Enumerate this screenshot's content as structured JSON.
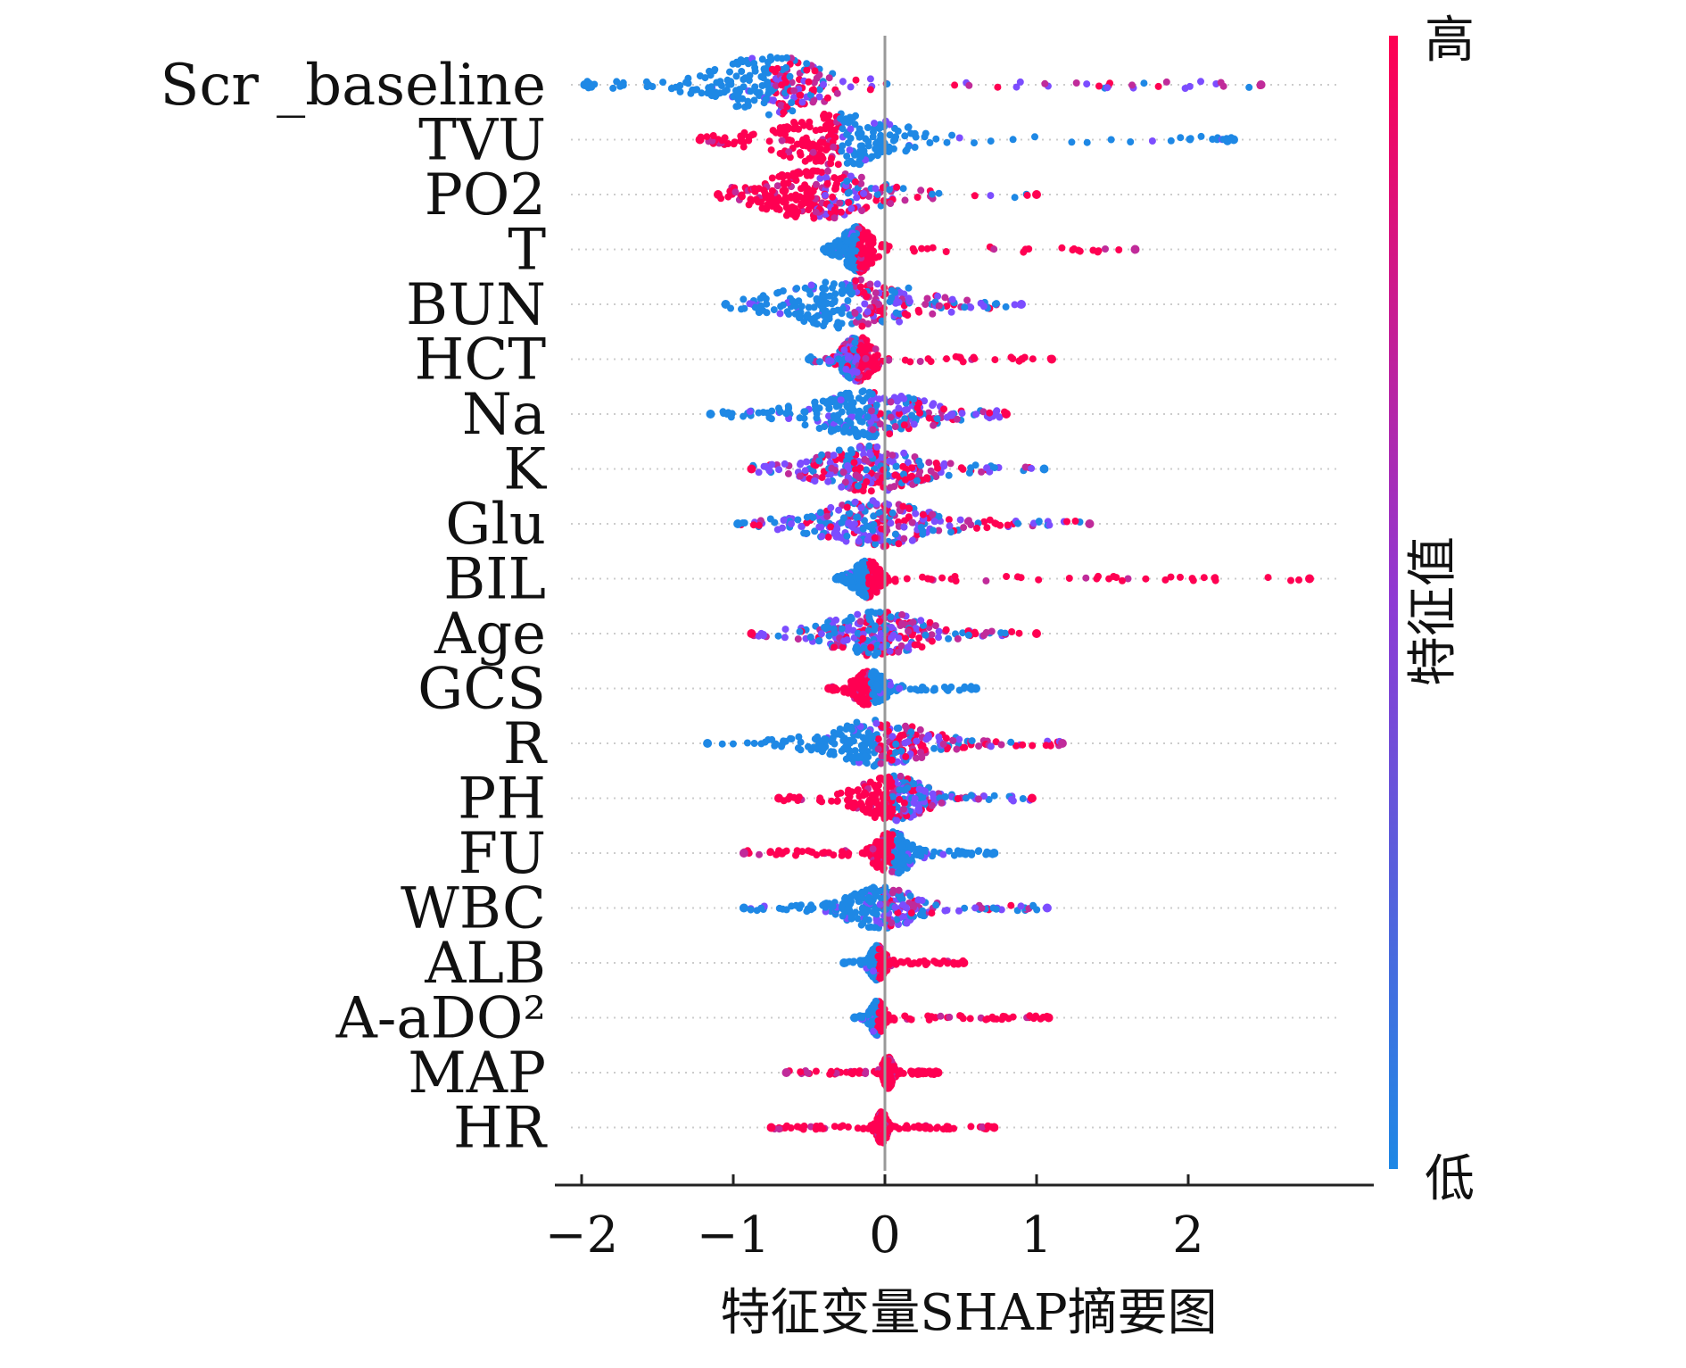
{
  "chart_data": {
    "type": "scatter",
    "title": "",
    "xlabel": "特征变量SHAP摘要图",
    "ylabel": "",
    "xlim": [
      -2.2,
      3.35
    ],
    "xticks": [
      -2,
      -1,
      0,
      1,
      2
    ],
    "xtick_labels": [
      "−2",
      "−1",
      "0",
      "1",
      "2"
    ],
    "grid": false,
    "zero_line": true,
    "colorbar": {
      "label": "特征值",
      "high_label": "高",
      "low_label": "低",
      "high_color": "#ff0052",
      "low_color": "#1e88e5"
    },
    "features": [
      {
        "name": "Scr _baseline",
        "min": -1.98,
        "max": 2.48,
        "center": -0.75,
        "spread": 0.42,
        "width": 34,
        "neg_color": "low",
        "pos_color": "mixed_high"
      },
      {
        "name": "TVU",
        "min": -1.22,
        "max": 2.3,
        "center": -0.3,
        "spread": 0.48,
        "width": 30,
        "neg_color": "high",
        "pos_color": "low"
      },
      {
        "name": "PO2",
        "min": -1.1,
        "max": 1.0,
        "center": -0.45,
        "spread": 0.45,
        "width": 28,
        "neg_color": "high",
        "pos_color": "mixed_high"
      },
      {
        "name": "T",
        "min": -0.4,
        "max": 1.65,
        "center": -0.18,
        "spread": 0.12,
        "width": 26,
        "neg_color": "low",
        "pos_color": "high"
      },
      {
        "name": "BUN",
        "min": -1.05,
        "max": 0.9,
        "center": -0.2,
        "spread": 0.55,
        "width": 28,
        "neg_color": "low",
        "pos_color": "mixed_high"
      },
      {
        "name": "HCT",
        "min": -0.5,
        "max": 1.1,
        "center": -0.18,
        "spread": 0.12,
        "width": 26,
        "neg_color": "mixed",
        "pos_color": "high"
      },
      {
        "name": "Na",
        "min": -1.15,
        "max": 0.8,
        "center": -0.1,
        "spread": 0.45,
        "width": 26,
        "neg_color": "low",
        "pos_color": "mixed"
      },
      {
        "name": "K",
        "min": -0.88,
        "max": 1.05,
        "center": -0.1,
        "spread": 0.42,
        "width": 26,
        "neg_color": "mixed",
        "pos_color": "mixed_high"
      },
      {
        "name": "Glu",
        "min": -0.97,
        "max": 1.35,
        "center": -0.08,
        "spread": 0.45,
        "width": 26,
        "neg_color": "mixed",
        "pos_color": "mixed_high"
      },
      {
        "name": "BIL",
        "min": -0.32,
        "max": 2.8,
        "center": -0.12,
        "spread": 0.1,
        "width": 22,
        "neg_color": "low",
        "pos_color": "high"
      },
      {
        "name": "Age",
        "min": -0.88,
        "max": 1.0,
        "center": -0.05,
        "spread": 0.38,
        "width": 26,
        "neg_color": "mixed",
        "pos_color": "mixed_high"
      },
      {
        "name": "GCS",
        "min": -0.37,
        "max": 0.6,
        "center": -0.1,
        "spread": 0.12,
        "width": 20,
        "neg_color": "high",
        "pos_color": "low"
      },
      {
        "name": "R",
        "min": -1.17,
        "max": 1.17,
        "center": -0.05,
        "spread": 0.4,
        "width": 26,
        "neg_color": "low",
        "pos_color": "mixed_high"
      },
      {
        "name": "PH",
        "min": -0.7,
        "max": 0.97,
        "center": 0.05,
        "spread": 0.25,
        "width": 26,
        "neg_color": "high",
        "pos_color": "mixed"
      },
      {
        "name": "FU",
        "min": -0.93,
        "max": 0.72,
        "center": 0.05,
        "spread": 0.15,
        "width": 24,
        "neg_color": "high",
        "pos_color": "low"
      },
      {
        "name": "WBC",
        "min": -0.93,
        "max": 1.07,
        "center": -0.02,
        "spread": 0.28,
        "width": 24,
        "neg_color": "low",
        "pos_color": "mixed"
      },
      {
        "name": "ALB",
        "min": -0.27,
        "max": 0.52,
        "center": -0.05,
        "spread": 0.06,
        "width": 20,
        "neg_color": "low",
        "pos_color": "high"
      },
      {
        "name": "A-aDO²",
        "min": -0.2,
        "max": 1.08,
        "center": -0.05,
        "spread": 0.05,
        "width": 20,
        "neg_color": "low",
        "pos_color": "high"
      },
      {
        "name": "MAP",
        "min": -0.65,
        "max": 0.35,
        "center": 0.02,
        "spread": 0.04,
        "width": 18,
        "neg_color": "high",
        "pos_color": "high"
      },
      {
        "name": "HR",
        "min": -0.75,
        "max": 0.72,
        "center": -0.02,
        "spread": 0.04,
        "width": 18,
        "neg_color": "high",
        "pos_color": "high"
      }
    ]
  }
}
